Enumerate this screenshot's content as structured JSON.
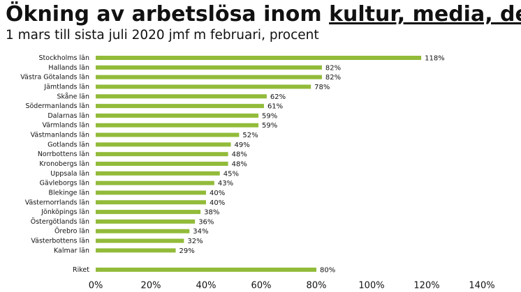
{
  "chart_data": {
    "type": "hbar",
    "title": {
      "lead": "Ökning av arbetslösa inom ",
      "emphasis": "kultur, media, design"
    },
    "subtitle": "1 mars till sista juli 2020 jmf m februari, procent",
    "categories": [
      "Stockholms län",
      "Hallands län",
      "Västra Götalands län",
      "Jämtlands län",
      "Skåne län",
      "Södermanlands län",
      "Dalarnas län",
      "Värmlands län",
      "Västmanlands län",
      "Gotlands län",
      "Norrbottens län",
      "Kronobergs län",
      "Uppsala län",
      "Gävleborgs län",
      "Blekinge län",
      "Västernorrlands län",
      "Jönköpings län",
      "Östergötlands län",
      "Örebro län",
      "Västerbottens län",
      "Kalmar län",
      null,
      "Riket"
    ],
    "values": [
      118,
      82,
      82,
      78,
      62,
      61,
      59,
      59,
      52,
      49,
      48,
      48,
      45,
      43,
      40,
      40,
      38,
      36,
      34,
      32,
      29,
      null,
      80
    ],
    "value_labels": [
      "118%",
      "82%",
      "82%",
      "78%",
      "62%",
      "61%",
      "59%",
      "59%",
      "52%",
      "49%",
      "48%",
      "48%",
      "45%",
      "43%",
      "40%",
      "40%",
      "38%",
      "36%",
      "34%",
      "32%",
      "29%",
      null,
      "80%"
    ],
    "color": "#92bb3a",
    "xlim": [
      0,
      140
    ],
    "xticks": [
      {
        "value": 0,
        "label": "0%"
      },
      {
        "value": 20,
        "label": "20%"
      },
      {
        "value": 40,
        "label": "40%"
      },
      {
        "value": 60,
        "label": "60%"
      },
      {
        "value": 80,
        "label": "80%"
      },
      {
        "value": 100,
        "label": "100%"
      },
      {
        "value": 120,
        "label": "120%"
      },
      {
        "value": 140,
        "label": "140%"
      }
    ]
  }
}
